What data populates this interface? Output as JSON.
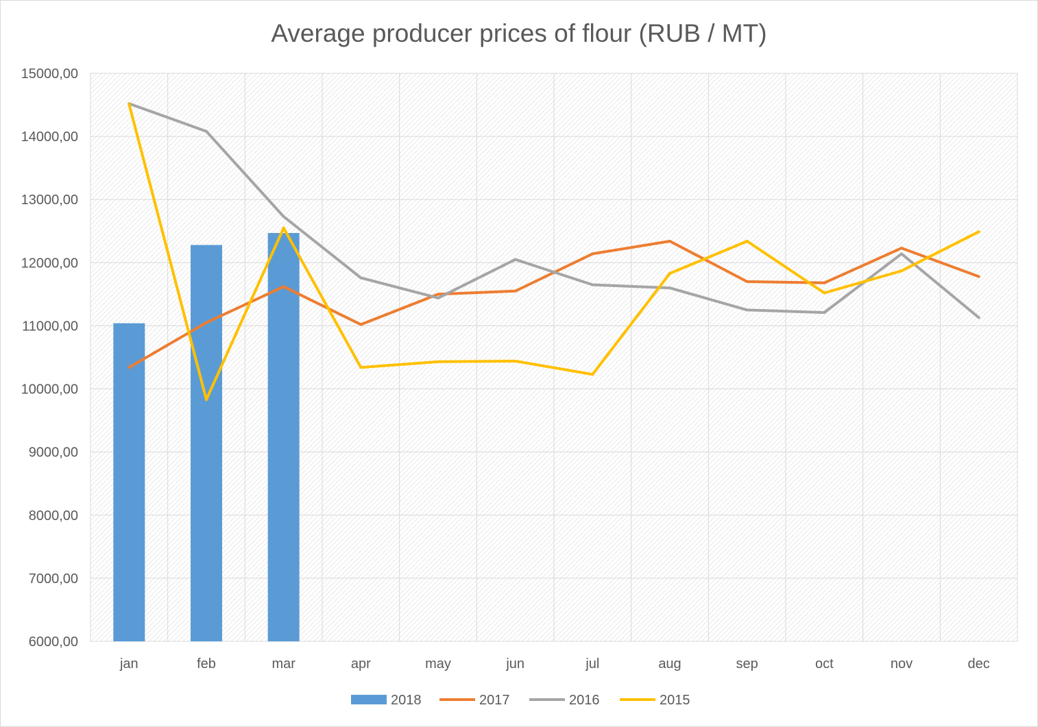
{
  "chart_data": {
    "type": "bar",
    "title": "Average producer prices of flour (RUB / MT)",
    "categories": [
      "jan",
      "feb",
      "mar",
      "apr",
      "may",
      "jun",
      "jul",
      "aug",
      "sep",
      "oct",
      "nov",
      "dec"
    ],
    "ylim": [
      6000,
      15000
    ],
    "yticks": [
      "6000,00",
      "7000,00",
      "8000,00",
      "9000,00",
      "10000,00",
      "11000,00",
      "12000,00",
      "13000,00",
      "14000,00",
      "15000,00"
    ],
    "grid": true,
    "legend_position": "bottom",
    "series": [
      {
        "name": "2018",
        "type": "bar",
        "color": "#5b9bd5",
        "values": [
          11040,
          12280,
          12470,
          null,
          null,
          null,
          null,
          null,
          null,
          null,
          null,
          null
        ]
      },
      {
        "name": "2017",
        "type": "line",
        "color": "#ed7d31",
        "values": [
          10340,
          11050,
          11620,
          11020,
          11500,
          11550,
          12140,
          12340,
          11700,
          11680,
          12230,
          11780
        ]
      },
      {
        "name": "2016",
        "type": "line",
        "color": "#a5a5a5",
        "values": [
          14520,
          14080,
          12730,
          11760,
          11440,
          12050,
          11650,
          11600,
          11250,
          11210,
          12140,
          11130
        ]
      },
      {
        "name": "2015",
        "type": "line",
        "color": "#ffc000",
        "values": [
          14510,
          9830,
          12550,
          10340,
          10430,
          10440,
          10230,
          11830,
          12340,
          11520,
          11870,
          12490
        ]
      }
    ]
  }
}
